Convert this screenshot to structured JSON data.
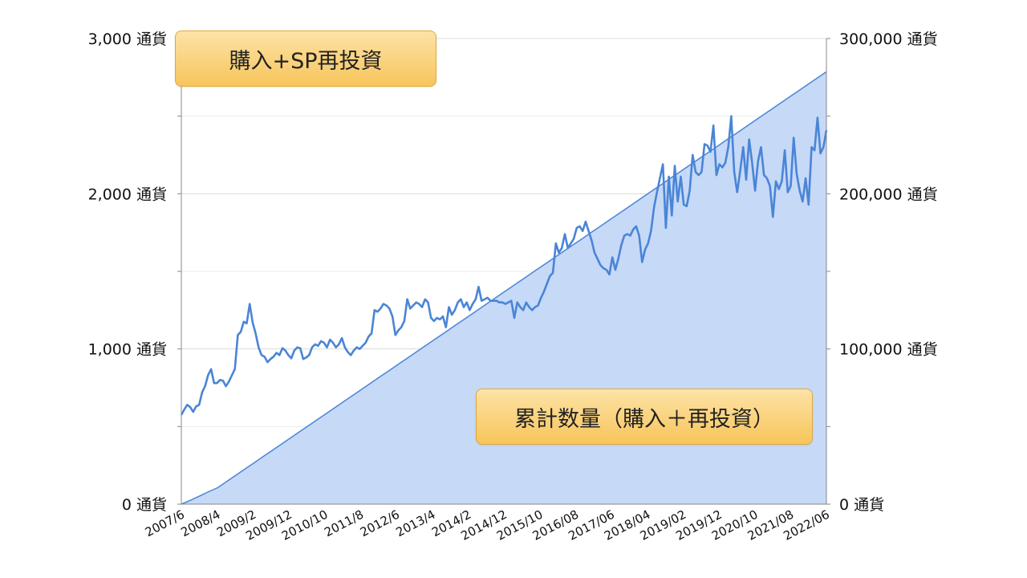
{
  "chart_data": {
    "type": "line",
    "series": [
      {
        "name": "購入+SP再投資",
        "axis": "left",
        "color": "#4a85d6",
        "values": [
          575,
          610,
          640,
          625,
          595,
          630,
          640,
          720,
          760,
          830,
          870,
          780,
          780,
          800,
          795,
          760,
          790,
          830,
          870,
          1090,
          1110,
          1175,
          1165,
          1290,
          1170,
          1100,
          1010,
          960,
          950,
          915,
          935,
          950,
          975,
          960,
          1005,
          990,
          960,
          940,
          990,
          1010,
          1005,
          935,
          945,
          960,
          1010,
          1030,
          1020,
          1050,
          1040,
          1010,
          1060,
          1040,
          1010,
          1030,
          1070,
          1010,
          980,
          960,
          990,
          1010,
          1000,
          1020,
          1040,
          1080,
          1100,
          1250,
          1240,
          1260,
          1290,
          1280,
          1260,
          1210,
          1090,
          1120,
          1140,
          1180,
          1320,
          1260,
          1280,
          1300,
          1290,
          1270,
          1320,
          1300,
          1200,
          1180,
          1200,
          1190,
          1210,
          1140,
          1270,
          1220,
          1250,
          1300,
          1320,
          1270,
          1300,
          1250,
          1290,
          1320,
          1400,
          1310,
          1320,
          1330,
          1310,
          1310,
          1310,
          1300,
          1300,
          1290,
          1300,
          1310,
          1200,
          1300,
          1270,
          1250,
          1300,
          1270,
          1250,
          1270,
          1280,
          1330,
          1370,
          1420,
          1470,
          1490,
          1680,
          1620,
          1650,
          1740,
          1650,
          1680,
          1710,
          1780,
          1790,
          1760,
          1820,
          1760,
          1700,
          1620,
          1580,
          1540,
          1520,
          1510,
          1480,
          1590,
          1510,
          1580,
          1670,
          1730,
          1740,
          1730,
          1770,
          1790,
          1730,
          1560,
          1640,
          1680,
          1760,
          1910,
          2010,
          2100,
          2190,
          1780,
          2110,
          1860,
          2180,
          1950,
          2110,
          1930,
          1920,
          2020,
          2250,
          2140,
          2120,
          2140,
          2320,
          2310,
          2270,
          2440,
          2120,
          2190,
          2170,
          2200,
          2300,
          2500,
          2140,
          2010,
          2150,
          2300,
          2090,
          2350,
          2200,
          2020,
          2210,
          2300,
          2120,
          2100,
          2050,
          1850,
          2080,
          2030,
          2080,
          2280,
          2010,
          2050,
          2360,
          2130,
          2020,
          1950,
          2100,
          1930,
          2300,
          2280,
          2490,
          2260,
          2300,
          2410
        ]
      },
      {
        "name": "累計数量（購入＋再投資）",
        "axis": "right",
        "color": "#c6d9f7",
        "values": [
          0,
          2500,
          5200,
          8000,
          10600,
          14600,
          18600,
          22600,
          26600,
          30600,
          34600,
          38600,
          42600,
          46600,
          50600,
          54600,
          58600,
          62600,
          66600,
          70600,
          74600,
          78600,
          82600,
          86600,
          90600,
          94600,
          98600,
          102600,
          106600,
          110600,
          114600,
          118600,
          122600,
          126600,
          130600,
          134600,
          138600,
          142600,
          146600,
          150600,
          154600,
          158600,
          162600,
          166600,
          170600,
          174600,
          178600,
          182600,
          186600,
          190600,
          194600,
          198600,
          202600,
          206600,
          210600,
          214600,
          218600,
          222600,
          226600,
          230600,
          234600,
          238600,
          242600,
          246600,
          250600,
          254600,
          258600,
          262600,
          266600,
          270600,
          274600,
          278600
        ]
      }
    ],
    "x_labels": [
      "2007/6",
      "2008/4",
      "2009/2",
      "2009/12",
      "2010/10",
      "2011/8",
      "2012/6",
      "2013/4",
      "2014/2",
      "2014/12",
      "2015/10",
      "2016/08",
      "2017/06",
      "2018/04",
      "2019/02",
      "2019/12",
      "2020/10",
      "2021/08",
      "2022/06"
    ],
    "y_left": {
      "min": 0,
      "max": 3000,
      "ticks": [
        "0 通貨",
        "1,000 通貨",
        "2,000 通貨",
        "3,000 通貨"
      ]
    },
    "y_right": {
      "min": 0,
      "max": 300000,
      "ticks": [
        "0 通貨",
        "100,000 通貨",
        "200,000 通貨",
        "300,000 通貨"
      ]
    },
    "grid": true,
    "legend": [
      {
        "label": "購入+SP再投資",
        "placement": "top-left"
      },
      {
        "label": "累計数量（購入＋再投資）",
        "placement": "bottom-right"
      }
    ]
  }
}
